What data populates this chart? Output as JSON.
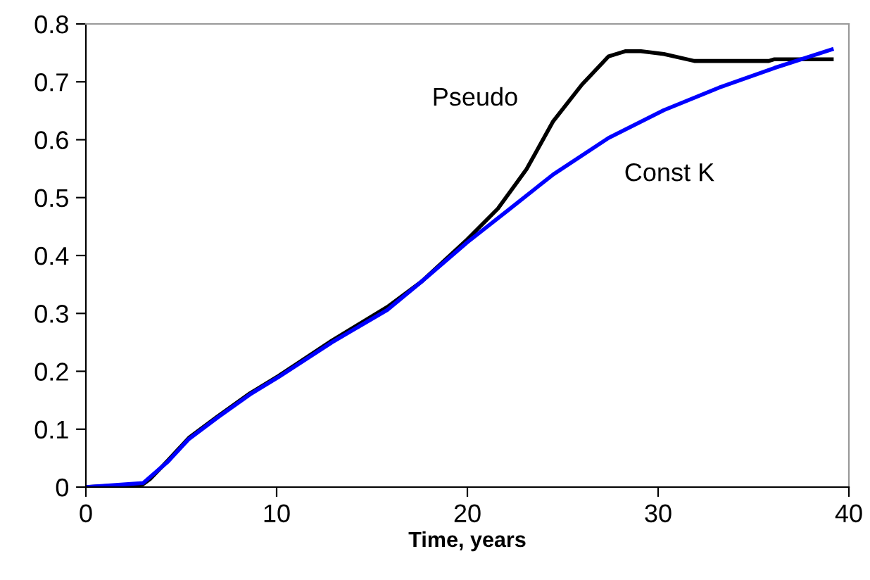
{
  "chart_data": {
    "type": "line",
    "xlabel": "Time, years",
    "xlim": [
      0,
      40
    ],
    "xticks": [
      0,
      10,
      20,
      30,
      40
    ],
    "ylim": [
      0,
      0.8
    ],
    "yticks": [
      0,
      0.1,
      0.2,
      0.3,
      0.4,
      0.5,
      0.6,
      0.7,
      0.8
    ],
    "grid": false,
    "legend": false,
    "series": [
      {
        "name": "Pseudo",
        "color": "#000000",
        "x": [
          0,
          3,
          3.4,
          4.3,
          5.4,
          6.9,
          8.6,
          10.1,
          12.9,
          15.8,
          17.6,
          20,
          21.6,
          23.1,
          24.5,
          26,
          27.4,
          28.3,
          29.1,
          30.3,
          31.9,
          35.8,
          36.1,
          39.1
        ],
        "values": [
          0,
          0.005,
          0.015,
          0.046,
          0.085,
          0.122,
          0.162,
          0.192,
          0.253,
          0.311,
          0.355,
          0.428,
          0.481,
          0.549,
          0.632,
          0.695,
          0.744,
          0.753,
          0.753,
          0.748,
          0.736,
          0.736,
          0.739,
          0.739
        ]
      },
      {
        "name": "Const K",
        "color": "#0000ff",
        "x": [
          0,
          3,
          4.3,
          5.4,
          6.9,
          8.6,
          10.1,
          12.9,
          15.8,
          17.6,
          20,
          22.2,
          24.5,
          27.4,
          30.3,
          33.2,
          36.1,
          39.1
        ],
        "values": [
          0,
          0.007,
          0.044,
          0.083,
          0.12,
          0.16,
          0.19,
          0.25,
          0.306,
          0.355,
          0.423,
          0.48,
          0.54,
          0.603,
          0.651,
          0.69,
          0.724,
          0.756
        ]
      }
    ]
  }
}
